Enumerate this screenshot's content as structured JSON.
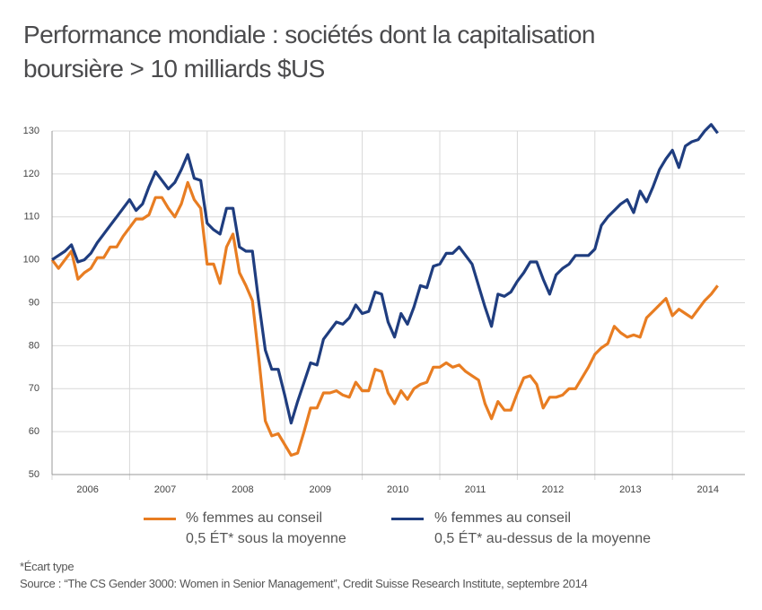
{
  "chart_data": {
    "type": "line",
    "title": "Performance mondiale : sociétés dont la capitalisation\nboursière > 10 milliards $US",
    "categories": [
      null,
      null,
      null,
      null,
      null,
      null,
      "2006",
      null,
      null,
      null,
      null,
      null,
      null,
      null,
      null,
      null,
      null,
      null,
      "2007",
      null,
      null,
      null,
      null,
      null,
      null,
      null,
      null,
      null,
      null,
      null,
      "2008",
      null,
      null,
      null,
      null,
      null,
      null,
      null,
      null,
      null,
      null,
      null,
      "2009",
      null,
      null,
      null,
      null,
      null,
      null,
      null,
      null,
      null,
      null,
      null,
      "2010",
      null,
      null,
      null,
      null,
      null,
      null,
      null,
      null,
      null,
      null,
      null,
      "2011",
      null,
      null,
      null,
      null,
      null,
      null,
      null,
      null,
      null,
      null,
      null,
      "2012",
      null,
      null,
      null,
      null,
      null,
      null,
      null,
      null,
      null,
      null,
      null,
      "2013",
      null,
      null,
      null,
      null,
      null,
      null,
      null,
      null,
      null,
      null,
      null,
      "2014",
      null
    ],
    "series": [
      {
        "name": "% femmes au conseil\n0,5 ÉT* sous la moyenne",
        "color": "#e87d22",
        "values": [
          100,
          98,
          100,
          102,
          95.5,
          97,
          98,
          100.5,
          100.5,
          103,
          103,
          105.5,
          107.5,
          109.5,
          109.5,
          110.5,
          114.5,
          114.5,
          112,
          110,
          113,
          118,
          114,
          112,
          99,
          99,
          94.5,
          103,
          106,
          97,
          94,
          90.5,
          77,
          62.5,
          59,
          59.5,
          57,
          54.5,
          55,
          60,
          65.5,
          65.5,
          69,
          69,
          69.5,
          68.5,
          68,
          71.5,
          69.5,
          69.5,
          74.5,
          74,
          69,
          66.5,
          69.5,
          67.5,
          70,
          71,
          71.5,
          75,
          75,
          76,
          75,
          75.5,
          74,
          73,
          72,
          66.5,
          63,
          67,
          65,
          65,
          69,
          72.5,
          73,
          71,
          65.5,
          68,
          68,
          68.5,
          70,
          70,
          72.5,
          75,
          78,
          79.5,
          80.5,
          84.5,
          83,
          82,
          82.5,
          82,
          86.5,
          88,
          89.5,
          91,
          87,
          88.5,
          87.5,
          86.5,
          88.5,
          90.5,
          92,
          94
        ]
      },
      {
        "name": "% femmes au conseil\n0,5 ÉT* au-dessus de la moyenne",
        "color": "#1f3d7f",
        "values": [
          100,
          101,
          102,
          103.5,
          99.5,
          100,
          101.5,
          104,
          106,
          108,
          110,
          112,
          114,
          111.5,
          113,
          117,
          120.5,
          118.5,
          116.5,
          118,
          121,
          124.5,
          119,
          118.5,
          108.5,
          107,
          106,
          112,
          112,
          103,
          102,
          102,
          90,
          79,
          74.5,
          74.5,
          68.5,
          62,
          67,
          71.5,
          76,
          75.5,
          81.5,
          83.5,
          85.5,
          85,
          86.5,
          89.5,
          87.5,
          88,
          92.5,
          92,
          85.5,
          82,
          87.5,
          85,
          89,
          94,
          93.5,
          98.5,
          99,
          101.5,
          101.5,
          103,
          101,
          99,
          94,
          89,
          84.5,
          92,
          91.5,
          92.5,
          95,
          97,
          99.5,
          99.5,
          95.5,
          92,
          96.5,
          98,
          99,
          101,
          101,
          101,
          102.5,
          108,
          110,
          111.5,
          113,
          114,
          111,
          116,
          113.5,
          117,
          121,
          123.5,
          125.5,
          121.5,
          126.5,
          127.5,
          128,
          130,
          131.5,
          129.5
        ]
      }
    ],
    "ylim": [
      50,
      130
    ],
    "yticks": [
      50,
      60,
      70,
      80,
      90,
      100,
      110,
      120,
      130
    ],
    "grid": true,
    "footnote": "*Écart type",
    "source": "Source : “The CS Gender 3000: Women in Senior Management”, Credit Suisse Research Institute, septembre 2014"
  }
}
